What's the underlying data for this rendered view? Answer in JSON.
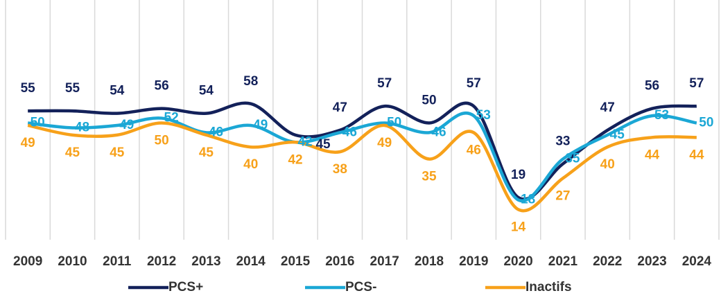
{
  "chart_data": {
    "type": "line",
    "categories": [
      "2009",
      "2010",
      "2011",
      "2012",
      "2013",
      "2014",
      "2015",
      "2016",
      "2017",
      "2018",
      "2019",
      "2020",
      "2021",
      "2022",
      "2023",
      "2024"
    ],
    "series": [
      {
        "name": "PCS+",
        "color": "#13215a",
        "values": [
          55,
          55,
          54,
          56,
          54,
          58,
          45,
          47,
          57,
          50,
          57,
          19,
          33,
          47,
          56,
          57
        ]
      },
      {
        "name": "PCS-",
        "color": "#1ba7d5",
        "values": [
          50,
          48,
          49,
          52,
          46,
          49,
          42,
          46,
          50,
          46,
          53,
          18,
          35,
          45,
          53,
          50
        ]
      },
      {
        "name": "Inactifs",
        "color": "#f7a11a",
        "values": [
          49,
          45,
          45,
          50,
          45,
          40,
          42,
          38,
          49,
          35,
          46,
          14,
          27,
          40,
          44,
          44
        ]
      }
    ],
    "ylim": [
      0,
      100
    ],
    "grid": true,
    "legend": "bottom"
  }
}
